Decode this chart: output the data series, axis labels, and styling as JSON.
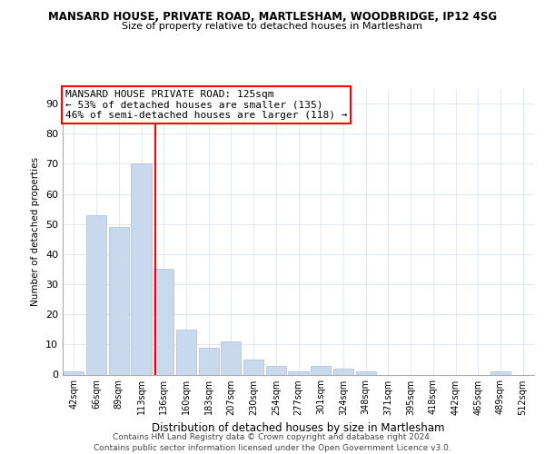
{
  "title1": "MANSARD HOUSE, PRIVATE ROAD, MARTLESHAM, WOODBRIDGE, IP12 4SG",
  "title2": "Size of property relative to detached houses in Martlesham",
  "xlabel": "Distribution of detached houses by size in Martlesham",
  "ylabel": "Number of detached properties",
  "bar_labels": [
    "42sqm",
    "66sqm",
    "89sqm",
    "113sqm",
    "136sqm",
    "160sqm",
    "183sqm",
    "207sqm",
    "230sqm",
    "254sqm",
    "277sqm",
    "301sqm",
    "324sqm",
    "348sqm",
    "371sqm",
    "395sqm",
    "418sqm",
    "442sqm",
    "465sqm",
    "489sqm",
    "512sqm"
  ],
  "bar_values": [
    1,
    53,
    49,
    70,
    35,
    15,
    9,
    11,
    5,
    3,
    1,
    3,
    2,
    1,
    0,
    0,
    0,
    0,
    0,
    1,
    0
  ],
  "bar_color": "#c8d9ee",
  "bar_edge_color": "#aabdd8",
  "grid_color": "#dce4f0",
  "red_line_x": 3.62,
  "annotation_line1": "MANSARD HOUSE PRIVATE ROAD: 125sqm",
  "annotation_line2": "← 53% of detached houses are smaller (135)",
  "annotation_line3": "46% of semi-detached houses are larger (118) →",
  "ylim": [
    0,
    95
  ],
  "yticks": [
    0,
    10,
    20,
    30,
    40,
    50,
    60,
    70,
    80,
    90
  ],
  "footer1": "Contains HM Land Registry data © Crown copyright and database right 2024.",
  "footer2": "Contains public sector information licensed under the Open Government Licence v3.0.",
  "bg_color": "#ffffff",
  "plot_bg_color": "#ffffff"
}
